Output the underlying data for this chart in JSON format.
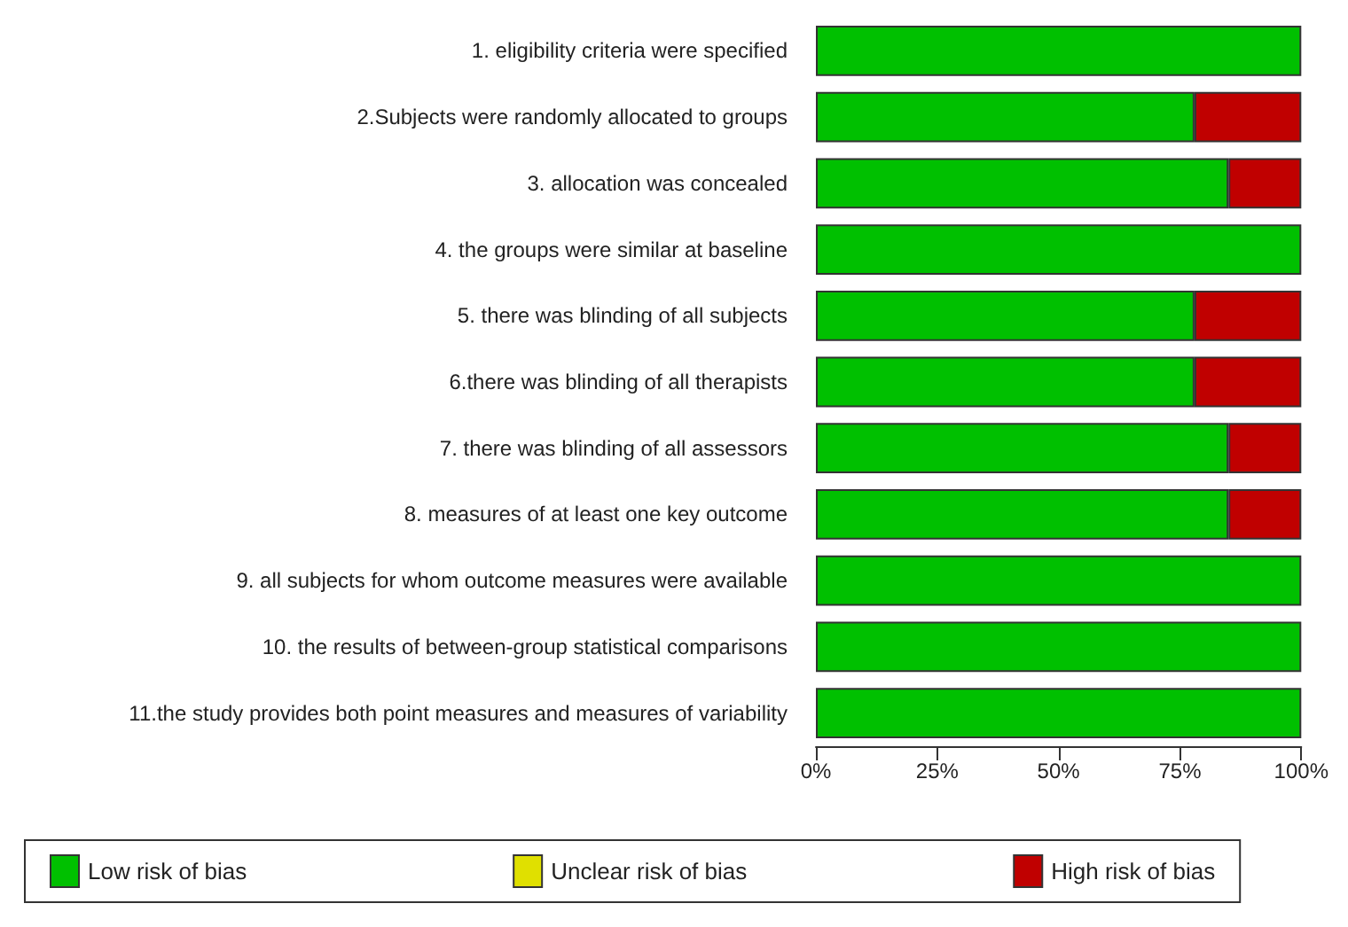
{
  "chart_data": {
    "type": "bar",
    "orientation": "horizontal",
    "stacked": true,
    "categories": [
      "1. eligibility criteria were specified",
      "2.Subjects were randomly allocated to groups",
      "3. allocation was concealed",
      "4. the groups were similar at baseline",
      "5. there was blinding of all subjects",
      "6.there was blinding of all therapists",
      "7. there was blinding of all assessors",
      "8. measures of at least one key outcome",
      "9. all subjects for whom outcome measures were available",
      "10. the results of between-group statistical comparisons",
      "11.the study provides both point measures and measures of variability"
    ],
    "series": [
      {
        "name": "Low risk of bias",
        "color": "#00c000",
        "values": [
          100,
          78,
          85,
          100,
          78,
          78,
          85,
          85,
          100,
          100,
          100
        ]
      },
      {
        "name": "Unclear risk of bias",
        "color": "#e0e000",
        "values": [
          0,
          0,
          0,
          0,
          0,
          0,
          0,
          0,
          0,
          0,
          0
        ]
      },
      {
        "name": "High risk of bias",
        "color": "#c00000",
        "values": [
          0,
          22,
          15,
          0,
          22,
          22,
          15,
          15,
          0,
          0,
          0
        ]
      }
    ],
    "xlim": [
      0,
      100
    ],
    "xticks": [
      {
        "value": 0,
        "label": "0%"
      },
      {
        "value": 25,
        "label": "25%"
      },
      {
        "value": 50,
        "label": "50%"
      },
      {
        "value": 75,
        "label": "75%"
      },
      {
        "value": 100,
        "label": "100%"
      }
    ],
    "grid": false,
    "legend": "bottom"
  }
}
